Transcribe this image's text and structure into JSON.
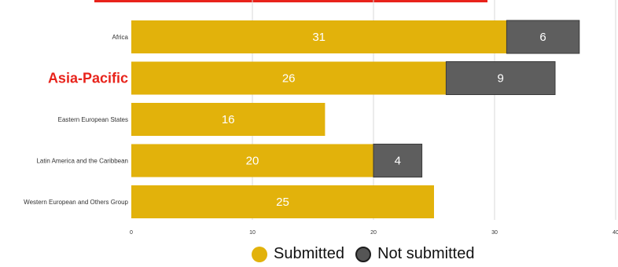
{
  "colors": {
    "submitted": "#e2b20b",
    "not_submitted": "#5e5e5e",
    "highlight": "#e8231b"
  },
  "chart_data": {
    "type": "bar",
    "orientation": "horizontal",
    "stacked": true,
    "categories": [
      "Africa",
      "Asia-Pacific",
      "Eastern European States",
      "Latin America and the Caribbean",
      "Western European and Others Group"
    ],
    "highlighted_category": "Asia-Pacific",
    "series": [
      {
        "name": "Submitted",
        "values": [
          31,
          26,
          16,
          20,
          25
        ]
      },
      {
        "name": "Not submitted",
        "values": [
          6,
          9,
          0,
          4,
          0
        ]
      }
    ],
    "xticks": [
      0,
      10,
      20,
      30,
      40
    ],
    "xlim": [
      0,
      40
    ],
    "grid": true,
    "legend_position": "bottom"
  },
  "legend": {
    "submitted_label": "Submitted",
    "not_submitted_label": "Not submitted"
  }
}
